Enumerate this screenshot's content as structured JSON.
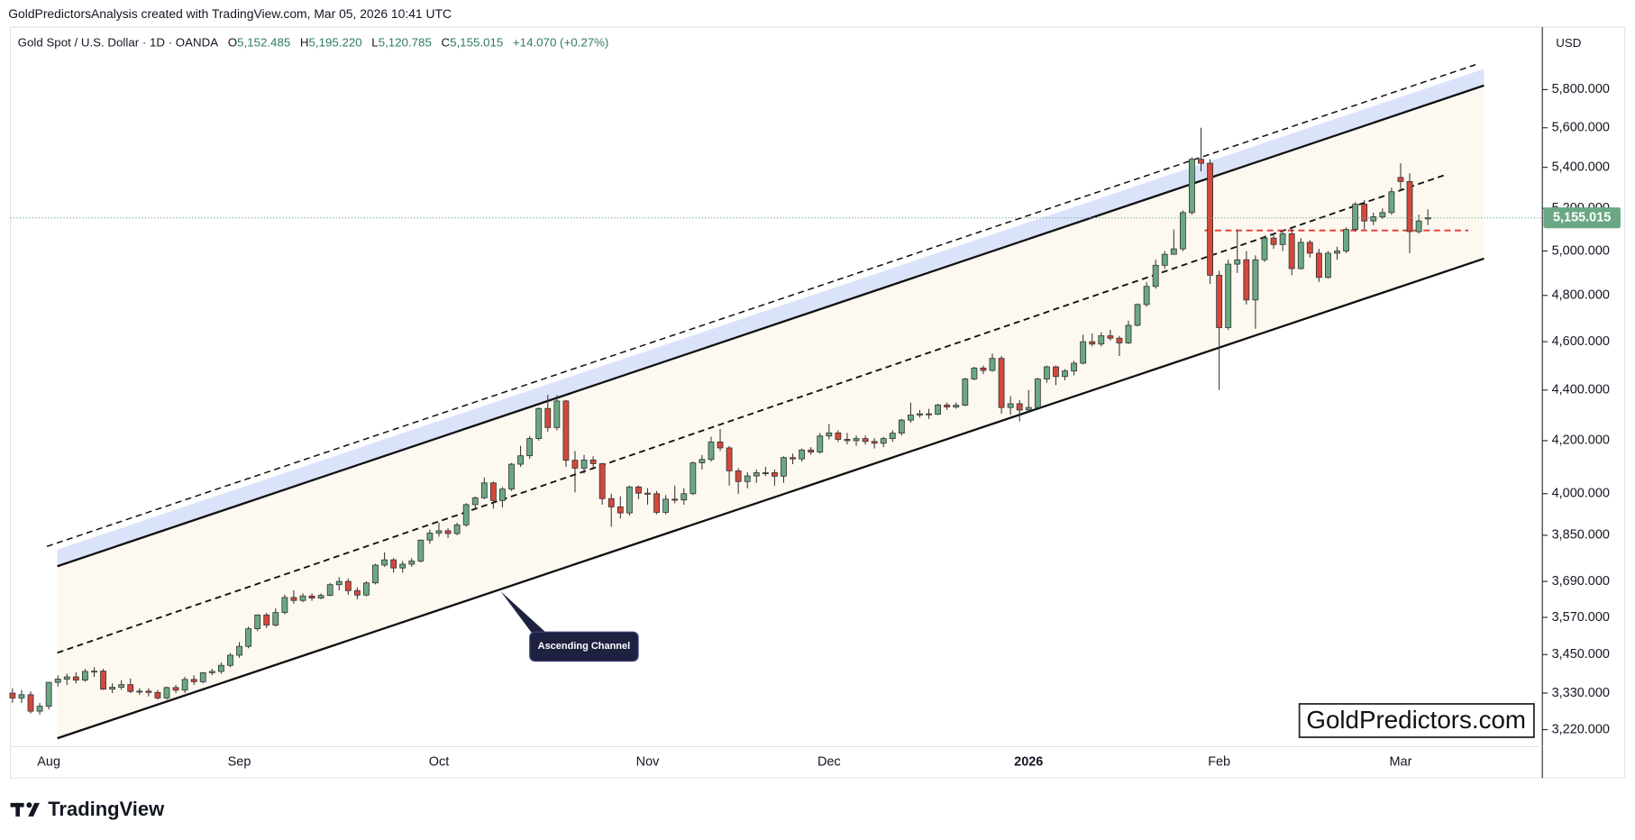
{
  "chart_data": {
    "type": "candlestick",
    "attribution": "GoldPredictorsAnalysis created with TradingView.com, Mar 05, 2026 10:41 UTC",
    "title": "Gold Spot / U.S. Dollar · 1D · OANDA",
    "ohlc_legend": [
      {
        "key": "O",
        "value": "5,152.485"
      },
      {
        "key": "H",
        "value": "5,195.220"
      },
      {
        "key": "L",
        "value": "5,120.785"
      },
      {
        "key": "C",
        "value": "5,155.015"
      }
    ],
    "change_label": "+14.070 (+0.27%)",
    "currency": "USD",
    "last_price_label": "5,155.015",
    "annotation": "Ascending Channel",
    "watermark": "GoldPredictors.com",
    "logo": "TradingView",
    "up_color": "#6aa884",
    "down_color": "#d4483c",
    "log_scale": true,
    "ylim": [
      3170,
      6143
    ],
    "yticks": [
      {
        "value": 3220,
        "label": "3,220.000"
      },
      {
        "value": 3330,
        "label": "3,330.000"
      },
      {
        "value": 3450,
        "label": "3,450.000"
      },
      {
        "value": 3570,
        "label": "3,570.000"
      },
      {
        "value": 3690,
        "label": "3,690.000"
      },
      {
        "value": 3850,
        "label": "3,850.000"
      },
      {
        "value": 4000,
        "label": "4,000.000"
      },
      {
        "value": 4200,
        "label": "4,200.000"
      },
      {
        "value": 4400,
        "label": "4,400.000"
      },
      {
        "value": 4600,
        "label": "4,600.000"
      },
      {
        "value": 4800,
        "label": "4,800.000"
      },
      {
        "value": 5000,
        "label": "5,000.000"
      },
      {
        "value": 5200,
        "label": "5,200.000"
      },
      {
        "value": 5400,
        "label": "5,400.000"
      },
      {
        "value": 5600,
        "label": "5,600.000"
      },
      {
        "value": 5800,
        "label": "5,800.000"
      }
    ],
    "categories": [
      null,
      null,
      null,
      null,
      "Aug",
      null,
      null,
      null,
      null,
      null,
      null,
      null,
      null,
      null,
      null,
      null,
      null,
      null,
      null,
      null,
      null,
      null,
      null,
      null,
      null,
      "Sep",
      null,
      null,
      null,
      null,
      null,
      null,
      null,
      null,
      null,
      null,
      null,
      null,
      null,
      null,
      null,
      null,
      null,
      null,
      null,
      null,
      null,
      "Oct",
      null,
      null,
      null,
      null,
      null,
      null,
      null,
      null,
      null,
      null,
      null,
      null,
      null,
      null,
      null,
      null,
      null,
      null,
      null,
      null,
      null,
      null,
      "Nov",
      null,
      null,
      null,
      null,
      null,
      null,
      null,
      null,
      null,
      null,
      null,
      null,
      null,
      null,
      null,
      null,
      null,
      null,
      null,
      "Dec",
      null,
      null,
      null,
      null,
      null,
      null,
      null,
      null,
      null,
      null,
      null,
      null,
      null,
      null,
      null,
      null,
      null,
      null,
      null,
      null,
      null,
      "2026",
      null,
      null,
      null,
      null,
      null,
      null,
      null,
      null,
      null,
      null,
      null,
      null,
      null,
      null,
      null,
      null,
      null,
      null,
      null,
      null,
      "Feb",
      null,
      null,
      null,
      null,
      null,
      null,
      null,
      null,
      null,
      null,
      null,
      null,
      null,
      null,
      null,
      null,
      null,
      null,
      null,
      "Mar",
      null,
      null,
      null
    ],
    "open": [
      3330,
      3315,
      3325,
      3275,
      3290,
      3363,
      3373,
      3380,
      3370,
      3397,
      3398,
      3342,
      3348,
      3356,
      3335,
      3336,
      3332,
      3315,
      3347,
      3339,
      3372,
      3365,
      3393,
      3397,
      3416,
      3448,
      3476,
      3533,
      3578,
      3545,
      3586,
      3636,
      3626,
      3641,
      3634,
      3643,
      3679,
      3690,
      3659,
      3644,
      3685,
      3746,
      3764,
      3736,
      3749,
      3760,
      3833,
      3858,
      3866,
      3856,
      3887,
      3960,
      3985,
      4040,
      3975,
      4017,
      4110,
      4142,
      4208,
      4326,
      4251,
      4356,
      4125,
      4095,
      4126,
      4112,
      3982,
      3952,
      3930,
      4025,
      4002,
      4000,
      3932,
      3980,
      3977,
      4000,
      4115,
      4128,
      4195,
      4172,
      4085,
      4045,
      4066,
      4078,
      4078,
      4065,
      4135,
      4130,
      4164,
      4156,
      4218,
      4230,
      4205,
      4200,
      4208,
      4197,
      4190,
      4208,
      4229,
      4280,
      4300,
      4305,
      4303,
      4340,
      4332,
      4339,
      4445,
      4490,
      4480,
      4530,
      4330,
      4345,
      4320,
      4330,
      4445,
      4495,
      4455,
      4478,
      4510,
      4600,
      4590,
      4625,
      4615,
      4595,
      4670,
      4760,
      4840,
      4935,
      4985,
      5010,
      5180,
      5440,
      5420,
      4890,
      4660,
      4940,
      4960,
      4780,
      4960,
      5060,
      5030,
      5080,
      4920,
      5040,
      4990,
      4880,
      4990,
      5000,
      5100,
      5220,
      5140,
      5160,
      5180,
      5350,
      5330,
      5090,
      5152.485
    ],
    "high": [
      3345,
      3340,
      3335,
      3300,
      3365,
      3385,
      3390,
      3395,
      3405,
      3410,
      3405,
      3360,
      3370,
      3375,
      3345,
      3345,
      3340,
      3350,
      3355,
      3380,
      3385,
      3395,
      3405,
      3425,
      3455,
      3490,
      3540,
      3580,
      3585,
      3600,
      3645,
      3660,
      3650,
      3650,
      3650,
      3685,
      3705,
      3700,
      3670,
      3690,
      3750,
      3790,
      3770,
      3760,
      3770,
      3835,
      3870,
      3895,
      3875,
      3895,
      3965,
      3990,
      4060,
      4045,
      4025,
      4115,
      4180,
      4218,
      4330,
      4380,
      4380,
      4360,
      4160,
      4145,
      4140,
      4115,
      4000,
      3990,
      4030,
      4030,
      4020,
      4010,
      3995,
      4030,
      4020,
      4120,
      4145,
      4215,
      4245,
      4180,
      4095,
      4080,
      4090,
      4100,
      4090,
      4140,
      4150,
      4170,
      4175,
      4230,
      4265,
      4240,
      4230,
      4220,
      4220,
      4210,
      4215,
      4240,
      4285,
      4350,
      4320,
      4325,
      4345,
      4350,
      4350,
      4450,
      4495,
      4500,
      4550,
      4540,
      4375,
      4360,
      4400,
      4450,
      4500,
      4500,
      4485,
      4520,
      4630,
      4635,
      4640,
      4650,
      4625,
      4690,
      4765,
      4860,
      4960,
      5000,
      5100,
      5190,
      5450,
      5600,
      5440,
      4910,
      4960,
      5100,
      5000,
      4980,
      5070,
      5080,
      5090,
      5110,
      5060,
      5050,
      5010,
      5000,
      5020,
      5110,
      5230,
      5240,
      5180,
      5200,
      5300,
      5420,
      5370,
      5170,
      5195.22
    ],
    "low": [
      3300,
      3300,
      3268,
      3265,
      3280,
      3350,
      3355,
      3360,
      3365,
      3380,
      3340,
      3330,
      3340,
      3330,
      3325,
      3320,
      3310,
      3310,
      3330,
      3330,
      3355,
      3360,
      3385,
      3390,
      3410,
      3440,
      3470,
      3525,
      3535,
      3540,
      3580,
      3615,
      3620,
      3625,
      3630,
      3640,
      3660,
      3645,
      3630,
      3640,
      3680,
      3740,
      3720,
      3720,
      3740,
      3755,
      3820,
      3845,
      3840,
      3850,
      3880,
      3945,
      3980,
      3945,
      3950,
      4010,
      4100,
      4130,
      4200,
      4235,
      4240,
      4100,
      4005,
      4075,
      4090,
      3960,
      3880,
      3910,
      3920,
      3980,
      3960,
      3925,
      3925,
      3965,
      3960,
      3995,
      4090,
      4120,
      4160,
      4030,
      4000,
      4020,
      4040,
      4065,
      4030,
      4040,
      4110,
      4120,
      4145,
      4150,
      4205,
      4195,
      4185,
      4180,
      4185,
      4170,
      4175,
      4195,
      4220,
      4270,
      4290,
      4285,
      4300,
      4320,
      4325,
      4335,
      4440,
      4465,
      4475,
      4305,
      4300,
      4275,
      4310,
      4320,
      4430,
      4420,
      4440,
      4460,
      4505,
      4580,
      4580,
      4605,
      4540,
      4590,
      4665,
      4750,
      4830,
      4920,
      4990,
      5000,
      5170,
      5380,
      4850,
      4400,
      4650,
      4900,
      4760,
      4655,
      4950,
      5010,
      5000,
      4890,
      4915,
      4970,
      4860,
      4875,
      4960,
      4990,
      5090,
      5100,
      5120,
      5150,
      5170,
      5290,
      4990,
      5080,
      5120.785
    ],
    "close": [
      3315,
      3325,
      3275,
      3290,
      3363,
      3373,
      3380,
      3370,
      3397,
      3398,
      3342,
      3348,
      3356,
      3335,
      3336,
      3332,
      3315,
      3347,
      3339,
      3372,
      3365,
      3393,
      3397,
      3416,
      3448,
      3476,
      3533,
      3578,
      3545,
      3586,
      3636,
      3626,
      3641,
      3634,
      3643,
      3679,
      3690,
      3659,
      3644,
      3685,
      3746,
      3764,
      3736,
      3749,
      3760,
      3833,
      3858,
      3866,
      3856,
      3887,
      3960,
      3985,
      4040,
      3975,
      4017,
      4110,
      4142,
      4208,
      4326,
      4251,
      4356,
      4125,
      4095,
      4126,
      4112,
      3982,
      3952,
      3930,
      4025,
      4002,
      4000,
      3932,
      3980,
      3977,
      4000,
      4115,
      4128,
      4195,
      4172,
      4085,
      4045,
      4066,
      4078,
      4078,
      4065,
      4135,
      4130,
      4164,
      4156,
      4218,
      4230,
      4205,
      4200,
      4208,
      4197,
      4190,
      4208,
      4229,
      4280,
      4300,
      4305,
      4303,
      4340,
      4332,
      4339,
      4445,
      4490,
      4480,
      4530,
      4330,
      4345,
      4320,
      4330,
      4445,
      4495,
      4455,
      4478,
      4510,
      4600,
      4590,
      4625,
      4615,
      4595,
      4670,
      4760,
      4840,
      4935,
      4985,
      5010,
      5180,
      5440,
      5420,
      4890,
      4660,
      4940,
      4960,
      4780,
      4960,
      5060,
      5030,
      5080,
      4920,
      5040,
      4990,
      4880,
      4990,
      5000,
      5100,
      5220,
      5140,
      5160,
      5180,
      5280,
      5330,
      5090,
      5140,
      5155.015
    ]
  }
}
